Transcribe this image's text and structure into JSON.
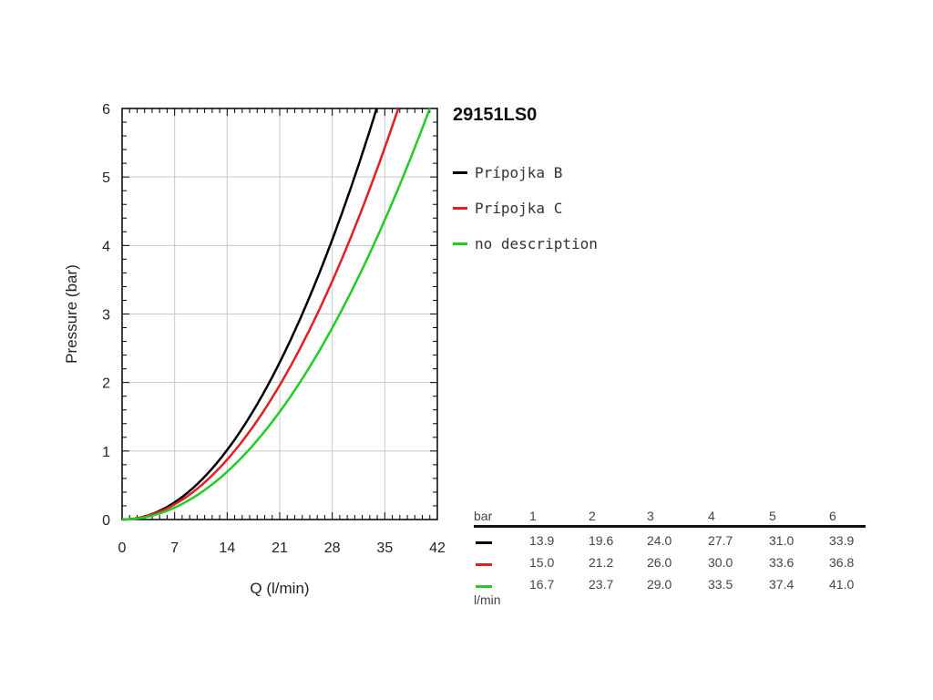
{
  "chart_data": {
    "type": "line",
    "title": "29151LS0",
    "xlabel": "Q (l/min)",
    "ylabel": "Pressure (bar)",
    "xlim": [
      0,
      42
    ],
    "ylim": [
      0,
      6
    ],
    "xticks": [
      0,
      7,
      14,
      21,
      28,
      35,
      42
    ],
    "yticks": [
      0,
      1,
      2,
      3,
      4,
      5,
      6
    ],
    "grid": true,
    "legend_position": "right",
    "series": [
      {
        "name": "Prípojka B",
        "color": "#000000",
        "x": [
          0,
          13.9,
          19.6,
          24.0,
          27.7,
          31.0,
          33.9
        ],
        "y": [
          0,
          1,
          2,
          3,
          4,
          5,
          6
        ]
      },
      {
        "name": "Prípojka C",
        "color": "#e02020",
        "x": [
          0,
          15.0,
          21.2,
          26.0,
          30.0,
          33.6,
          36.8
        ],
        "y": [
          0,
          1,
          2,
          3,
          4,
          5,
          6
        ]
      },
      {
        "name": "no description",
        "color": "#22cc22",
        "x": [
          0,
          16.7,
          23.7,
          29.0,
          33.5,
          37.4,
          41.0
        ],
        "y": [
          0,
          1,
          2,
          3,
          4,
          5,
          6
        ]
      }
    ]
  },
  "table": {
    "header_label": "bar",
    "columns": [
      "1",
      "2",
      "3",
      "4",
      "5",
      "6"
    ],
    "rows": [
      {
        "color": "#000000",
        "values": [
          "13.9",
          "19.6",
          "24.0",
          "27.7",
          "31.0",
          "33.9"
        ]
      },
      {
        "color": "#e02020",
        "values": [
          "15.0",
          "21.2",
          "26.0",
          "30.0",
          "33.6",
          "36.8"
        ]
      },
      {
        "color": "#22cc22",
        "values": [
          "16.7",
          "23.7",
          "29.0",
          "33.5",
          "37.4",
          "41.0"
        ]
      }
    ],
    "unit_label": "l/min"
  }
}
